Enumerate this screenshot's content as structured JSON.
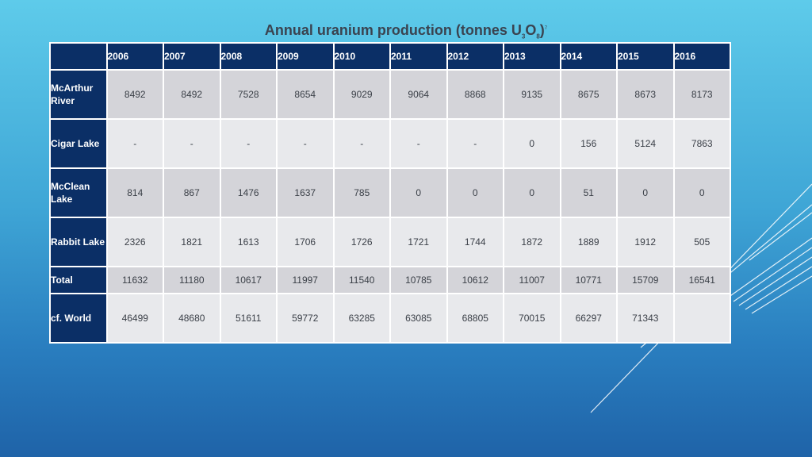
{
  "title": {
    "text": "Annual uranium production (tonnes U",
    "sub1": "3",
    "mid": "O",
    "sub2": "8",
    "end": ")",
    "mark": "7"
  },
  "columns": [
    "2006",
    "2007",
    "2008",
    "2009",
    "2010",
    "2011",
    "2012",
    "2013",
    "2014",
    "2015",
    "2016"
  ],
  "rows": [
    {
      "label": "McArthur River",
      "values": [
        "8492",
        "8492",
        "7528",
        "8654",
        "9029",
        "9064",
        "8868",
        "9135",
        "8675",
        "8673",
        "8173"
      ]
    },
    {
      "label": "Cigar Lake",
      "values": [
        "-",
        "-",
        "-",
        "-",
        "-",
        "-",
        "-",
        "0",
        "156",
        "5124",
        "7863"
      ]
    },
    {
      "label": "McClean Lake",
      "values": [
        "814",
        "867",
        "1476",
        "1637",
        "785",
        "0",
        "0",
        "0",
        "51",
        "0",
        "0"
      ]
    },
    {
      "label": "Rabbit Lake",
      "values": [
        "2326",
        "1821",
        "1613",
        "1706",
        "1726",
        "1721",
        "1744",
        "1872",
        "1889",
        "1912",
        "505"
      ]
    },
    {
      "label": "Total",
      "values": [
        "11632",
        "11180",
        "10617",
        "11997",
        "11540",
        "10785",
        "10612",
        "11007",
        "10771",
        "15709",
        "16541"
      ]
    },
    {
      "label": "cf. World",
      "values": [
        "46499",
        "48680",
        "51611",
        "59772",
        "63285",
        "63085",
        "68805",
        "70015",
        "66297",
        "71343",
        ""
      ]
    }
  ]
}
